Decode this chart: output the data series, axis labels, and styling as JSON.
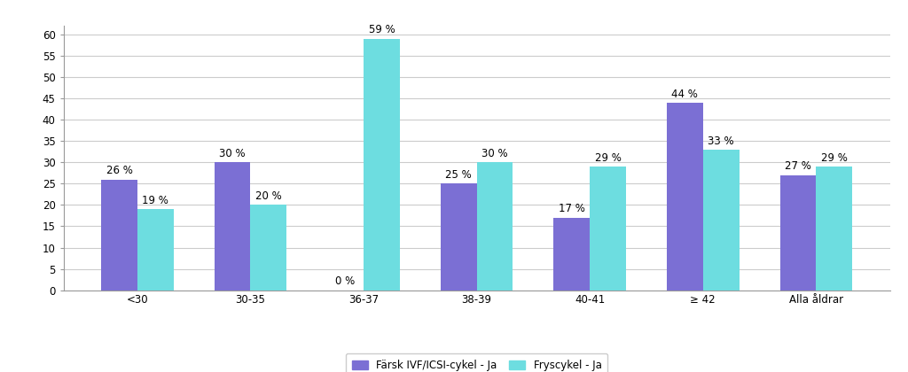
{
  "categories": [
    "<30",
    "30-35",
    "36-37",
    "38-39",
    "40-41",
    "≥ 42",
    "Alla åldrar"
  ],
  "series1_label": "Färsk IVF/ICSI-cykel - Ja",
  "series2_label": "Fryscykel - Ja",
  "series1_values": [
    26,
    30,
    0,
    25,
    17,
    44,
    27
  ],
  "series2_values": [
    19,
    20,
    59,
    30,
    29,
    33,
    29
  ],
  "series1_color": "#7B6FD4",
  "series2_color": "#6DDDE0",
  "ylim": [
    0,
    62
  ],
  "yticks": [
    0,
    5,
    10,
    15,
    20,
    25,
    30,
    35,
    40,
    45,
    50,
    55,
    60
  ],
  "bar_width": 0.32,
  "background_color": "#ffffff",
  "grid_color": "#cccccc",
  "label_fontsize": 8.5,
  "tick_fontsize": 8.5,
  "legend_fontsize": 8.5
}
